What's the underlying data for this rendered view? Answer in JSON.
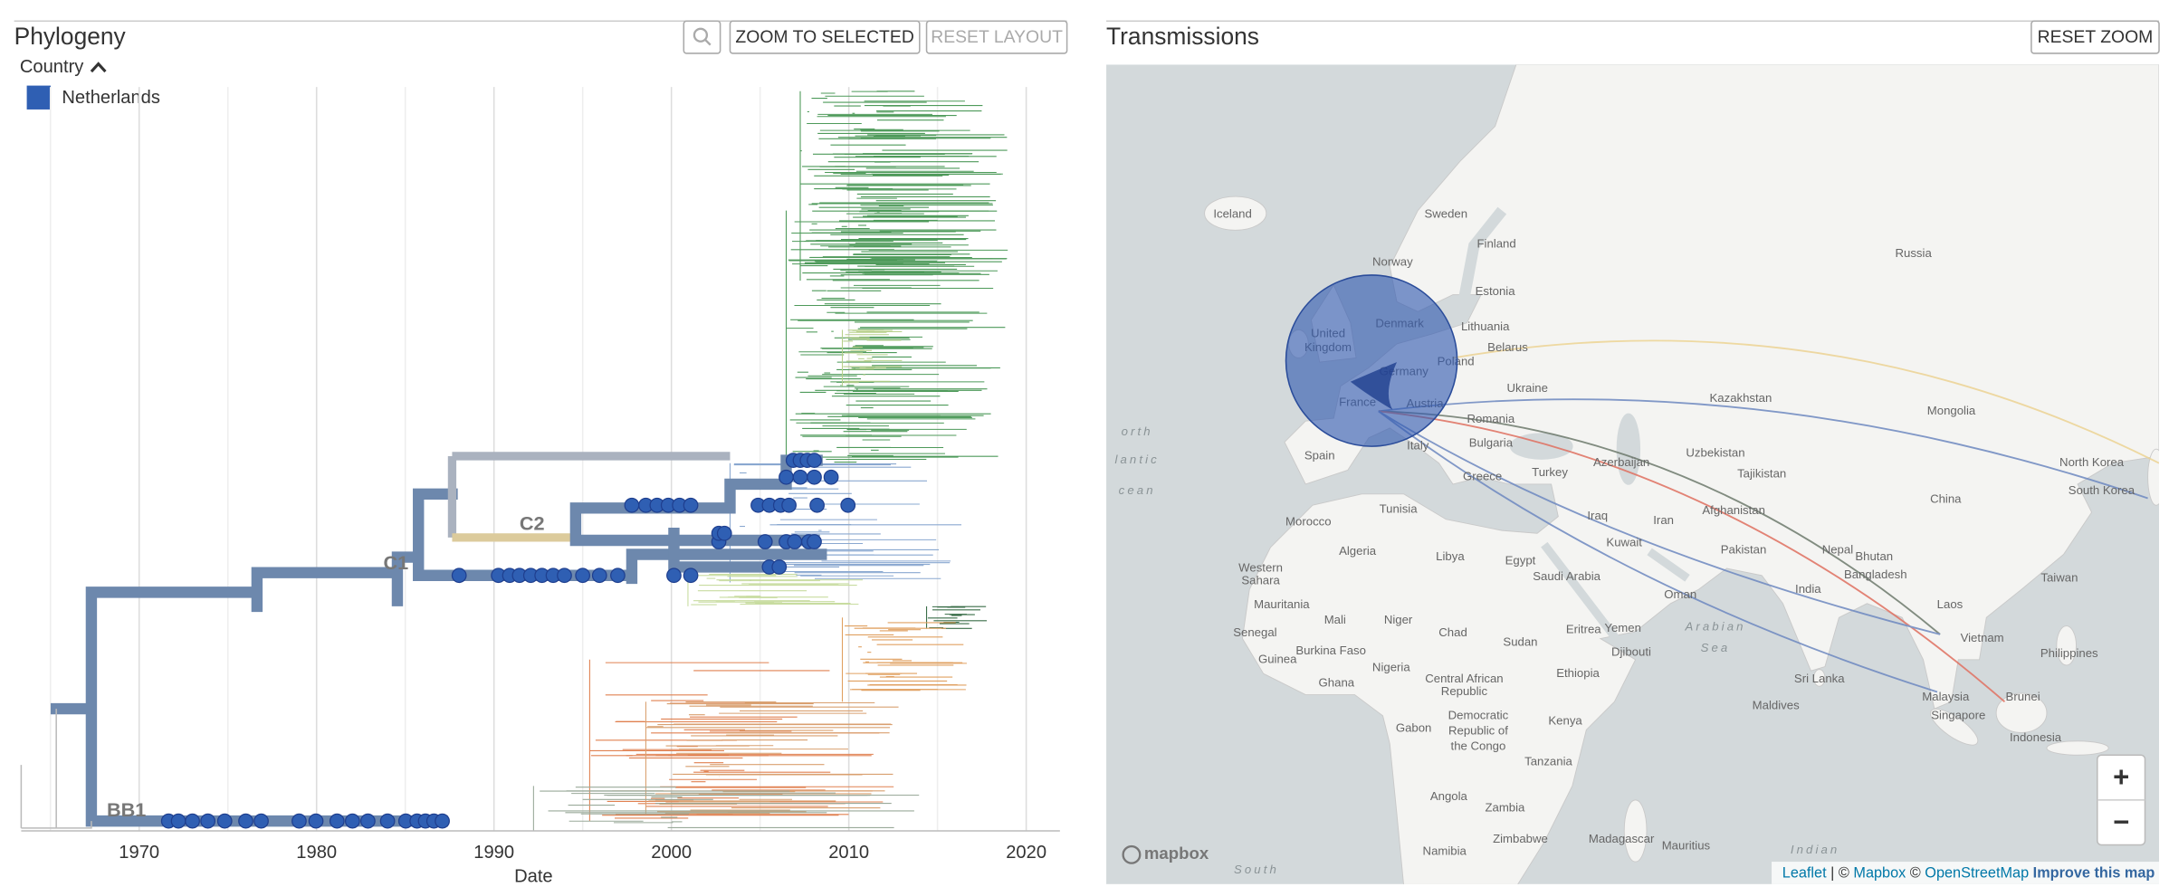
{
  "phylogeny": {
    "title": "Phylogeny",
    "buttons": [
      "ZOOM TO SELECTED",
      "RESET LAYOUT"
    ],
    "legend": {
      "title": "Country",
      "items": [
        {
          "label": "Netherlands",
          "color": "#2f5fb3"
        }
      ]
    },
    "clade_labels": [
      "C2",
      "C1",
      "BB1"
    ],
    "axis": {
      "label": "Date",
      "xlim": [
        1963.35,
        2021.9
      ],
      "ticks": [
        1970,
        1980,
        1990,
        2000,
        2010,
        2020
      ],
      "minor_ticks": [
        1965,
        1975,
        1985,
        1995,
        2005,
        2015
      ]
    }
  },
  "transmissions": {
    "title": "Transmissions",
    "buttons": [
      "RESET ZOOM"
    ],
    "map_labels": [
      "Iceland",
      "Sweden",
      "Finland",
      "Russia",
      "Norway",
      "Estonia",
      "Denmark",
      "Lithuania",
      "United",
      "Kingdom",
      "Belarus",
      "Poland",
      "Germany",
      "Ukraine",
      "Kazakhstan",
      "Mongolia",
      "France",
      "Austria",
      "Romania",
      "Italy",
      "Bulgaria",
      "Uzbekistan",
      "Spain",
      "Azerbaijan",
      "North Korea",
      "Greece",
      "Turkey",
      "Tajikistan",
      "South Korea",
      "China",
      "Tunisia",
      "Afghanistan",
      "Iraq",
      "Iran",
      "Morocco",
      "Kuwait",
      "Nepal",
      "Algeria",
      "Libya",
      "Egypt",
      "Pakistan",
      "Bhutan",
      "Bangladesh",
      "Western",
      "Sahara",
      "Saudi Arabia",
      "Taiwan",
      "Oman",
      "India",
      "Laos",
      "Mauritania",
      "Mali",
      "Niger",
      "Eritrea",
      "Yemen",
      "Arabian",
      "Sea",
      "Vietnam",
      "Chad",
      "Senegal",
      "Sudan",
      "Philippines",
      "Djibouti",
      "Burkina Faso",
      "Guinea",
      "Nigeria",
      "Ethiopia",
      "Sri Lanka",
      "Ghana",
      "Central African",
      "Republic",
      "Malaysia",
      "Brunei",
      "Maldives",
      "Kenya",
      "Singapore",
      "Democratic",
      "Republic of",
      "the Congo",
      "Indonesia",
      "Gabon",
      "Tanzania",
      "Angola",
      "Zambia",
      "Zimbabwe",
      "Madagascar",
      "Mauritius",
      "Namibia",
      "Indian",
      "South",
      "orth",
      "lantic",
      "cean"
    ],
    "zoom": [
      "+",
      "−"
    ],
    "logo": "mapbox",
    "attribution": [
      "Leaflet",
      " | © ",
      "Mapbox",
      " © ",
      "OpenStreetMap",
      " Improve this map"
    ]
  }
}
